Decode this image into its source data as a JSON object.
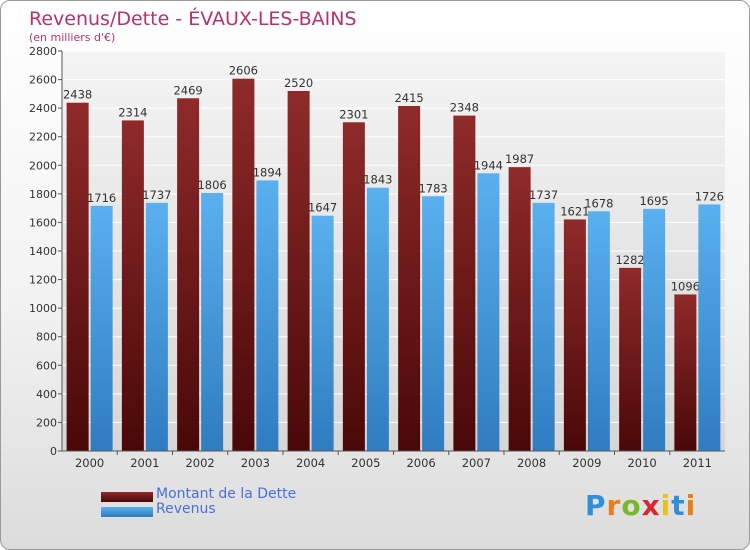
{
  "title": "Revenus/Dette - ÉVAUX-LES-BAINS",
  "subtitle": "(en milliers d'€)",
  "legend": {
    "debt": "Montant de la Dette",
    "revenue": "Revenus"
  },
  "logo": "Proxiti",
  "colors": {
    "debt": "#7a1f1f",
    "revenue": "#4fa3e3",
    "title": "#b8306e",
    "legend_text": "#4a6fd8"
  },
  "chart_data": {
    "type": "bar",
    "categories": [
      "2000",
      "2001",
      "2002",
      "2003",
      "2004",
      "2005",
      "2006",
      "2007",
      "2008",
      "2009",
      "2010",
      "2011"
    ],
    "series": [
      {
        "name": "Montant de la Dette",
        "values": [
          2438,
          2314,
          2469,
          2606,
          2520,
          2301,
          2415,
          2348,
          1987,
          1621,
          1282,
          1096
        ]
      },
      {
        "name": "Revenus",
        "values": [
          1716,
          1737,
          1806,
          1894,
          1647,
          1843,
          1783,
          1944,
          1737,
          1678,
          1695,
          1726
        ]
      }
    ],
    "data_labels": [
      [
        "2438",
        "2314",
        "2469",
        "2606",
        "2520",
        "2301",
        "2415",
        "2348",
        "1987",
        "1621",
        "1282",
        "1096"
      ],
      [
        "1716",
        "1737",
        "1806",
        "1894",
        "1647",
        "1843",
        "1783",
        "1944",
        "1737",
        "1678",
        "1695",
        "1726"
      ]
    ],
    "ylim": [
      0,
      2800
    ],
    "yticks": [
      "0",
      "200",
      "400",
      "600",
      "800",
      "1000",
      "1200",
      "1400",
      "1600",
      "1800",
      "2000",
      "2200",
      "2400",
      "2600",
      "2800"
    ],
    "grid": true,
    "legend_position": "bottom-left"
  }
}
